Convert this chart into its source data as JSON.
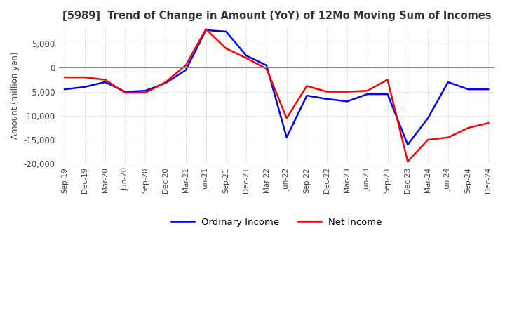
{
  "title": "[5989]  Trend of Change in Amount (YoY) of 12Mo Moving Sum of Incomes",
  "ylabel": "Amount (million yen)",
  "ylim": [
    -20000,
    8500
  ],
  "yticks": [
    5000,
    0,
    -5000,
    -10000,
    -15000,
    -20000
  ],
  "background_color": "#ffffff",
  "grid_color": "#aaaaaa",
  "ordinary_income_color": "#0000ff",
  "net_income_color": "#ff0000",
  "x_labels": [
    "Sep-19",
    "Dec-19",
    "Mar-20",
    "Jun-20",
    "Sep-20",
    "Dec-20",
    "Mar-21",
    "Jun-21",
    "Sep-21",
    "Dec-21",
    "Mar-22",
    "Jun-22",
    "Sep-22",
    "Dec-22",
    "Mar-23",
    "Jun-23",
    "Sep-23",
    "Dec-23",
    "Mar-24",
    "Jun-24",
    "Sep-24",
    "Dec-24"
  ],
  "ordinary_income": [
    -4500,
    -4000,
    -3000,
    -5000,
    -4800,
    -3200,
    -500,
    7800,
    7500,
    2500,
    500,
    -14500,
    -5800,
    -6500,
    -7000,
    -5500,
    -5500,
    -16000,
    -10500,
    -3000,
    -4500,
    -4500
  ],
  "net_income": [
    -2000,
    -2000,
    -2500,
    -5200,
    -5200,
    -3000,
    500,
    8000,
    4000,
    2000,
    -200,
    -10500,
    -3800,
    -5000,
    -5000,
    -4800,
    -2500,
    -19500,
    -15000,
    -14500,
    -12500,
    -11500
  ]
}
